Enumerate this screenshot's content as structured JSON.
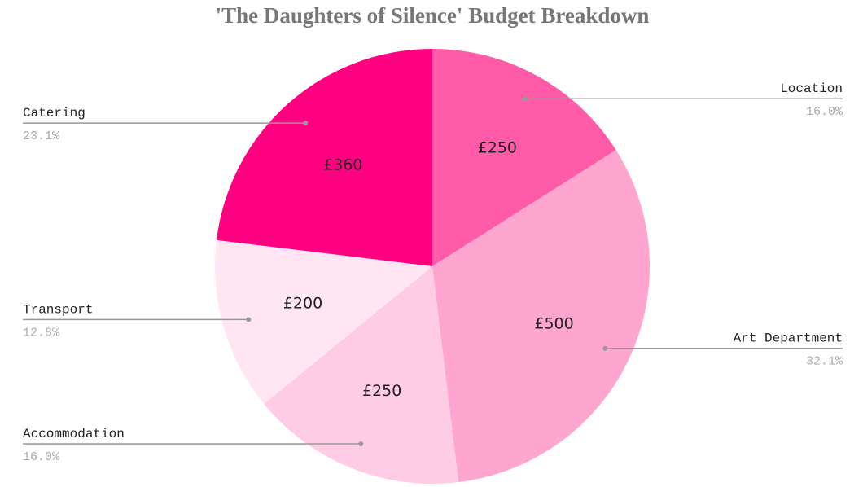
{
  "chart_data": {
    "type": "pie",
    "title": "'The Daughters of Silence' Budget Breakdown",
    "categories": [
      "Location",
      "Art Department",
      "Accommodation",
      "Transport",
      "Catering"
    ],
    "values": [
      250,
      500,
      250,
      200,
      360
    ],
    "value_labels": [
      "£250",
      "£500",
      "£250",
      "£200",
      "£360"
    ],
    "percentages": [
      16.0,
      32.1,
      16.0,
      12.8,
      23.1
    ],
    "percentage_labels": [
      "16.0%",
      "32.1%",
      "16.0%",
      "12.8%",
      "23.1%"
    ],
    "colors": [
      "#ff5ba8",
      "#ffa6d0",
      "#ffcce6",
      "#ffe6f2",
      "#ff0080"
    ]
  }
}
